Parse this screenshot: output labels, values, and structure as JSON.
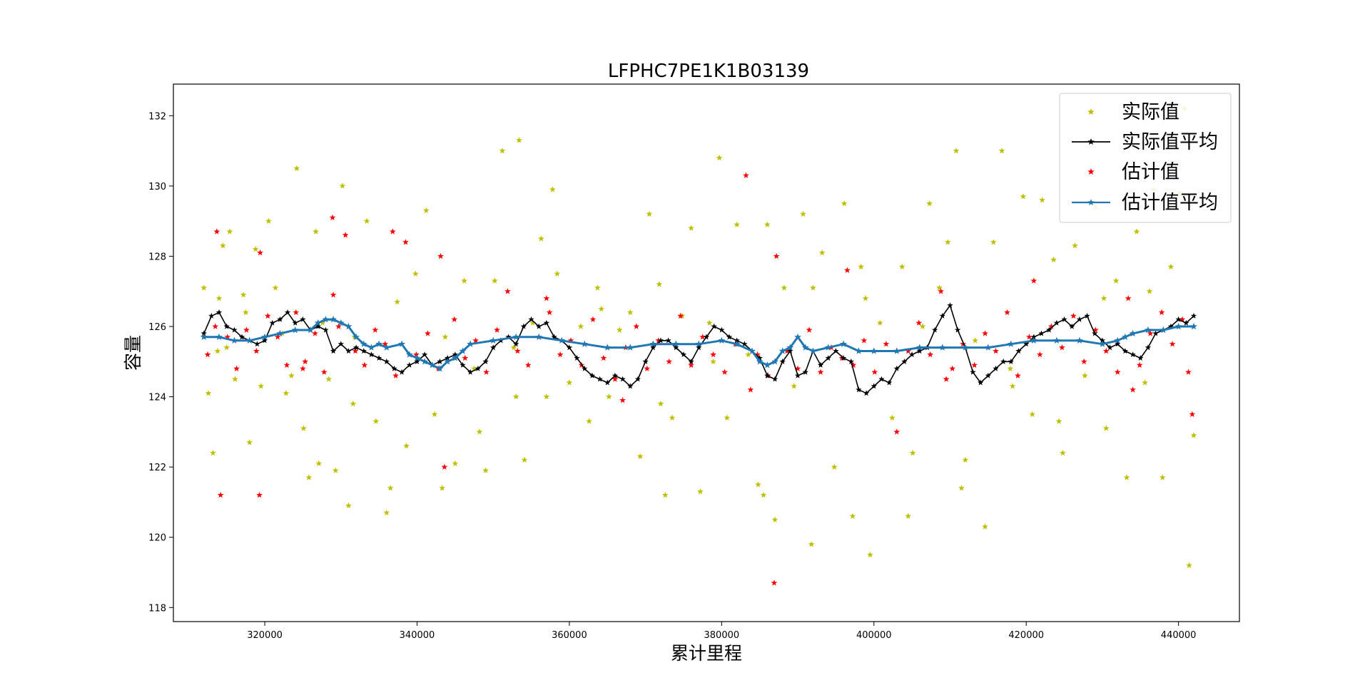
{
  "colors": {
    "actual": "#bfbf00",
    "actual_avg": "#000000",
    "estimate": "#ff0000",
    "estimate_avg": "#1f77b4"
  },
  "chart_data": {
    "type": "scatter",
    "title": "LFPHC7PE1K1B03139",
    "xlabel": "累计里程",
    "ylabel": "容量",
    "xlim": [
      308000,
      448000
    ],
    "ylim": [
      117.6,
      132.9
    ],
    "xticks": [
      320000,
      340000,
      360000,
      380000,
      400000,
      420000,
      440000
    ],
    "yticks": [
      118,
      120,
      122,
      124,
      126,
      128,
      130,
      132
    ],
    "grid": false,
    "legend_position": "top-right",
    "legend": [
      "实际值",
      "实际值平均",
      "估计值",
      "估计值平均"
    ],
    "series": [
      {
        "name": "实际值",
        "kind": "scatter",
        "color": "#bfbf00",
        "x": [
          312000,
          312600,
          313200,
          314000,
          314500,
          315000,
          315400,
          316100,
          317200,
          318000,
          318800,
          319500,
          320500,
          321400,
          322300,
          323500,
          324200,
          325100,
          325800,
          326700,
          327600,
          328400,
          329300,
          330200,
          331000,
          331800,
          333400,
          334600,
          336000,
          337400,
          338600,
          339800,
          341200,
          342300,
          343700,
          345000,
          346200,
          347500,
          349000,
          350200,
          351200,
          352700,
          353400,
          354100,
          355200,
          356300,
          357000,
          358400,
          360000,
          361500,
          362600,
          363700,
          365200,
          366600,
          368000,
          369300,
          370500,
          371800,
          372600,
          373500,
          374800,
          376000,
          377200,
          378400,
          379700,
          380700,
          382000,
          383500,
          384800,
          386000,
          387000,
          388200,
          389500,
          390700,
          391800,
          393200,
          394800,
          396100,
          397200,
          398300,
          399500,
          400800,
          402400,
          403700,
          405100,
          406400,
          407300,
          408600,
          409700,
          410800,
          412000,
          413300,
          414600,
          415700,
          416800,
          418200,
          419600,
          420800,
          422100,
          423600,
          424800,
          426400,
          427700,
          429100,
          430500,
          431800,
          433200,
          434500,
          435600,
          436700,
          437900,
          439000,
          440100,
          440800,
          441400,
          442000,
          313800,
          317500,
          322800,
          327100,
          331600,
          336500,
          343300,
          348200,
          353000,
          357800,
          364200,
          372000,
          378900,
          385500,
          392000,
          398900,
          404500,
          411500,
          417900,
          424300,
          430200,
          436200
        ],
        "y": [
          127.1,
          124.1,
          122.4,
          126.8,
          128.3,
          125.4,
          128.7,
          124.5,
          126.9,
          122.7,
          128.2,
          124.3,
          129.0,
          127.1,
          125.8,
          124.6,
          130.5,
          123.1,
          121.7,
          128.7,
          126.1,
          124.5,
          121.9,
          130.0,
          120.9,
          125.7,
          129.0,
          123.3,
          120.7,
          126.7,
          122.6,
          127.5,
          129.3,
          123.5,
          125.7,
          122.1,
          127.3,
          124.8,
          121.9,
          127.3,
          131.0,
          125.4,
          131.3,
          122.2,
          126.1,
          128.5,
          124.0,
          127.5,
          124.4,
          126.0,
          123.3,
          127.1,
          124.0,
          125.9,
          126.4,
          122.3,
          129.2,
          127.2,
          121.2,
          123.4,
          126.3,
          128.8,
          121.3,
          126.1,
          130.8,
          123.4,
          128.9,
          125.2,
          121.5,
          128.9,
          120.5,
          127.1,
          124.3,
          129.2,
          119.8,
          128.1,
          122.0,
          129.5,
          120.6,
          127.7,
          119.5,
          126.1,
          123.4,
          127.7,
          122.4,
          126.0,
          129.5,
          127.1,
          128.4,
          131.0,
          122.2,
          125.6,
          120.3,
          128.4,
          131.0,
          124.3,
          129.7,
          123.5,
          129.6,
          127.9,
          122.4,
          128.3,
          124.6,
          129.4,
          123.1,
          127.3,
          121.7,
          128.7,
          124.4,
          129.9,
          121.7,
          127.7,
          129.8,
          132.2,
          119.2,
          122.9,
          125.3,
          126.4,
          124.1,
          122.1,
          123.8,
          121.4,
          121.4,
          123.0,
          124.0,
          129.9,
          126.5,
          123.8,
          125.0,
          121.2,
          127.1,
          126.8,
          120.6,
          121.4,
          124.8,
          123.3,
          126.8,
          127.0
        ]
      },
      {
        "name": "实际值平均",
        "kind": "line",
        "color": "#000000",
        "x": [
          312000,
          313000,
          314000,
          315000,
          316000,
          317000,
          318000,
          319000,
          320000,
          321000,
          322000,
          323000,
          324000,
          325000,
          326000,
          327000,
          328000,
          329000,
          330000,
          331000,
          332000,
          333000,
          334000,
          335000,
          336000,
          337000,
          338000,
          339000,
          340000,
          341000,
          342000,
          343000,
          344000,
          345000,
          346000,
          347000,
          348000,
          349000,
          350000,
          351000,
          352000,
          353000,
          354000,
          355000,
          356000,
          357000,
          358000,
          359000,
          360000,
          361000,
          362000,
          363000,
          364000,
          365000,
          366000,
          367000,
          368000,
          369000,
          370000,
          371000,
          372000,
          373000,
          374000,
          375000,
          376000,
          377000,
          378000,
          379000,
          380000,
          381000,
          382000,
          383000,
          384000,
          385000,
          386000,
          387000,
          388000,
          389000,
          390000,
          391000,
          392000,
          393000,
          394000,
          395000,
          396000,
          397000,
          398000,
          399000,
          400000,
          401000,
          402000,
          403000,
          404000,
          405000,
          406000,
          407000,
          408000,
          409000,
          410000,
          411000,
          412000,
          413000,
          414000,
          415000,
          416000,
          417000,
          418000,
          419000,
          420000,
          421000,
          422000,
          423000,
          424000,
          425000,
          426000,
          427000,
          428000,
          429000,
          430000,
          431000,
          432000,
          433000,
          434000,
          435000,
          436000,
          437000,
          438000,
          439000,
          440000,
          441000,
          442000
        ],
        "y": [
          125.8,
          126.3,
          126.4,
          126.0,
          125.9,
          125.7,
          125.6,
          125.5,
          125.6,
          126.1,
          126.2,
          126.4,
          126.1,
          126.2,
          125.9,
          126.0,
          125.9,
          125.3,
          125.5,
          125.3,
          125.4,
          125.3,
          125.2,
          125.1,
          125.0,
          124.8,
          124.7,
          124.9,
          125.0,
          125.2,
          124.9,
          125.0,
          125.1,
          125.2,
          124.9,
          124.7,
          124.8,
          125.0,
          125.4,
          125.6,
          125.7,
          125.5,
          126.0,
          126.2,
          126.0,
          126.1,
          125.7,
          125.6,
          125.4,
          125.1,
          124.8,
          124.6,
          124.5,
          124.4,
          124.6,
          124.5,
          124.3,
          124.5,
          125.0,
          125.4,
          125.6,
          125.6,
          125.4,
          125.2,
          125.0,
          125.4,
          125.7,
          126.0,
          125.9,
          125.7,
          125.6,
          125.5,
          125.3,
          125.1,
          124.6,
          124.5,
          125.0,
          125.3,
          124.6,
          124.7,
          125.3,
          124.9,
          125.1,
          125.3,
          125.1,
          125.0,
          124.2,
          124.1,
          124.3,
          124.5,
          124.4,
          124.8,
          125.0,
          125.2,
          125.3,
          125.4,
          125.9,
          126.3,
          126.6,
          125.9,
          125.4,
          124.7,
          124.4,
          124.6,
          124.8,
          125.0,
          125.0,
          125.3,
          125.5,
          125.7,
          125.8,
          125.9,
          126.1,
          126.2,
          126.0,
          126.2,
          126.3,
          125.8,
          125.6,
          125.4,
          125.5,
          125.3,
          125.2,
          125.1,
          125.4,
          125.8,
          125.9,
          126.0,
          126.2,
          126.1,
          126.3
        ]
      },
      {
        "name": "估计值",
        "kind": "scatter",
        "color": "#ff0000",
        "x": [
          312500,
          313500,
          314200,
          315100,
          316300,
          317600,
          318900,
          319300,
          320400,
          321700,
          322900,
          324100,
          325300,
          326600,
          327800,
          328900,
          329700,
          330600,
          331900,
          333100,
          334500,
          335800,
          337200,
          338500,
          339900,
          341400,
          342800,
          343600,
          344900,
          346300,
          347700,
          349100,
          350500,
          351900,
          353200,
          354600,
          356000,
          357400,
          358800,
          360200,
          361600,
          363100,
          364500,
          366000,
          367400,
          368800,
          370200,
          371700,
          373100,
          374600,
          376000,
          377500,
          378900,
          380400,
          381800,
          383200,
          384700,
          386100,
          387200,
          388600,
          390000,
          391500,
          393000,
          394400,
          395800,
          397300,
          398700,
          400100,
          401600,
          403000,
          404500,
          405900,
          407400,
          408800,
          410300,
          411700,
          413200,
          414600,
          416000,
          417500,
          418900,
          420400,
          421800,
          423300,
          424700,
          426200,
          427600,
          429100,
          430500,
          432000,
          433400,
          434900,
          436300,
          437800,
          439200,
          440500,
          441300,
          441800,
          313700,
          319400,
          329000,
          343100,
          383800,
          386900,
          336800,
          325000,
          357000,
          367000,
          396500,
          409500,
          421000,
          434000
        ],
        "y": [
          125.2,
          126.0,
          121.2,
          125.7,
          124.8,
          125.9,
          125.3,
          121.2,
          126.3,
          125.7,
          124.9,
          126.4,
          125.0,
          125.8,
          124.7,
          129.1,
          126.0,
          128.6,
          125.3,
          124.9,
          125.9,
          125.5,
          124.6,
          128.4,
          125.2,
          125.8,
          124.8,
          122.0,
          126.2,
          125.1,
          125.6,
          124.7,
          125.9,
          127.0,
          125.3,
          124.9,
          125.7,
          126.4,
          125.2,
          125.6,
          124.9,
          126.2,
          125.1,
          124.5,
          125.4,
          126.0,
          124.8,
          125.6,
          125.0,
          126.3,
          124.9,
          125.7,
          125.2,
          124.7,
          125.5,
          130.3,
          125.2,
          124.6,
          128.0,
          125.3,
          124.8,
          125.9,
          124.7,
          125.4,
          125.1,
          124.9,
          125.6,
          124.7,
          125.5,
          123.0,
          125.3,
          126.1,
          125.2,
          127.0,
          124.8,
          125.5,
          124.9,
          125.8,
          125.3,
          126.4,
          124.6,
          125.7,
          125.2,
          126.0,
          125.4,
          126.3,
          125.0,
          125.9,
          125.3,
          124.7,
          126.8,
          124.9,
          125.8,
          126.4,
          125.5,
          126.2,
          124.7,
          123.5,
          128.7,
          128.1,
          126.9,
          128.0,
          124.2,
          118.7,
          128.7,
          124.8,
          126.8,
          123.9,
          127.6,
          124.5,
          127.3,
          124.2
        ]
      },
      {
        "name": "估计值平均",
        "kind": "line",
        "color": "#1f77b4",
        "x": [
          312000,
          314000,
          316000,
          318000,
          320000,
          322000,
          324000,
          326000,
          327000,
          328000,
          329000,
          330000,
          331000,
          332000,
          333000,
          334000,
          335000,
          336000,
          338000,
          339000,
          340000,
          341000,
          342000,
          343000,
          344000,
          345000,
          346000,
          347000,
          350000,
          353000,
          356000,
          359000,
          362000,
          365000,
          368000,
          371000,
          374000,
          377000,
          380000,
          382000,
          384000,
          385000,
          386000,
          387000,
          388000,
          389000,
          390000,
          391000,
          392000,
          394000,
          396000,
          398000,
          400000,
          403000,
          406000,
          409000,
          412000,
          415000,
          418000,
          421000,
          424000,
          427000,
          430000,
          432000,
          433000,
          434000,
          436000,
          438000,
          440000,
          442000
        ],
        "y": [
          125.7,
          125.7,
          125.6,
          125.6,
          125.7,
          125.8,
          125.9,
          125.9,
          126.1,
          126.2,
          126.2,
          126.1,
          126.0,
          125.7,
          125.5,
          125.4,
          125.5,
          125.4,
          125.5,
          125.2,
          125.1,
          125.0,
          124.9,
          124.8,
          125.0,
          125.1,
          125.3,
          125.5,
          125.6,
          125.7,
          125.7,
          125.6,
          125.5,
          125.4,
          125.4,
          125.5,
          125.5,
          125.5,
          125.6,
          125.5,
          125.3,
          125.0,
          124.9,
          125.0,
          125.3,
          125.4,
          125.7,
          125.4,
          125.3,
          125.4,
          125.5,
          125.3,
          125.3,
          125.3,
          125.4,
          125.4,
          125.4,
          125.4,
          125.5,
          125.6,
          125.6,
          125.6,
          125.5,
          125.6,
          125.7,
          125.8,
          125.9,
          125.9,
          126.0,
          126.0
        ]
      }
    ]
  }
}
